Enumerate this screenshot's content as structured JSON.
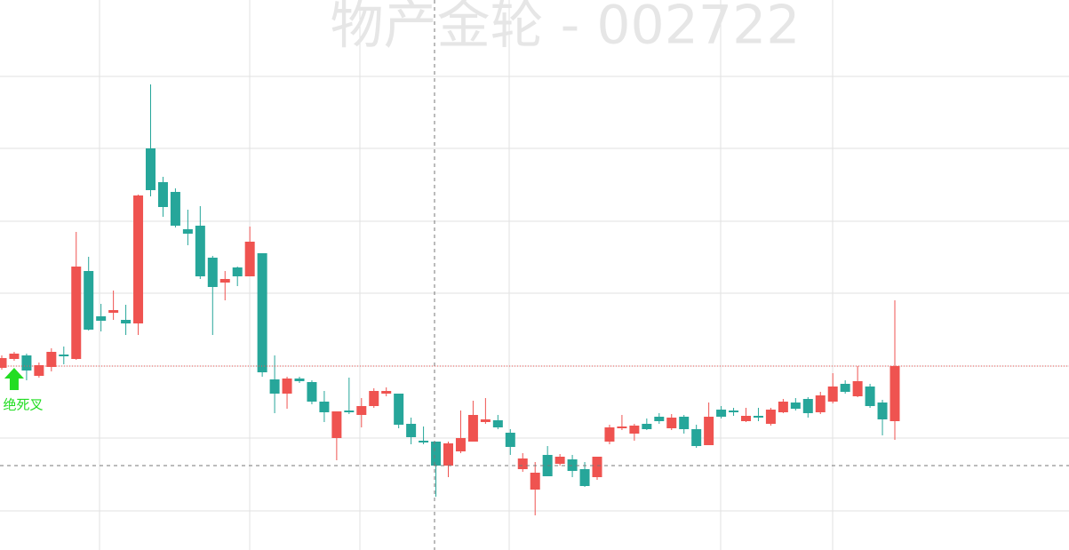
{
  "chart_data": {
    "type": "candlestick",
    "title": "物产金轮 - 002722",
    "annotation": "绝死叉",
    "annotation_index": 1,
    "up_color": "#ef5350",
    "down_color": "#26a69a",
    "annotation_color": "#22dd22",
    "ylim": [
      0,
      619
    ],
    "yticks": [
      44,
      126,
      207,
      289,
      370,
      452,
      533
    ],
    "grid": true,
    "open": [
      205,
      215,
      219,
      196,
      206,
      220,
      215,
      314,
      263,
      267,
      259,
      255,
      452,
      414,
      403,
      361,
      365,
      329,
      301,
      318,
      308,
      334,
      192,
      176,
      193,
      189,
      167,
      126,
      157,
      152,
      162,
      176,
      176,
      142,
      123,
      122,
      95,
      111,
      122,
      144,
      146,
      132,
      91,
      68,
      107,
      97,
      102,
      91,
      82,
      122,
      137,
      131,
      142,
      150,
      137,
      150,
      136,
      118,
      158,
      157,
      145,
      151,
      142,
      155,
      166,
      170,
      155,
      167,
      187,
      173,
      184,
      166,
      145
    ],
    "high": [
      219,
      223,
      221,
      211,
      227,
      229,
      358,
      330,
      277,
      292,
      276,
      400,
      524,
      420,
      407,
      383,
      387,
      331,
      314,
      319,
      364,
      334,
      219,
      195,
      195,
      191,
      179,
      156,
      194,
      171,
      182,
      183,
      176,
      149,
      139,
      122,
      122,
      157,
      168,
      171,
      152,
      136,
      109,
      99,
      117,
      108,
      107,
      99,
      105,
      141,
      152,
      142,
      148,
      154,
      153,
      152,
      141,
      166,
      162,
      160,
      160,
      160,
      160,
      170,
      171,
      172,
      178,
      199,
      191,
      207,
      187,
      169,
      281
    ],
    "low": [
      203,
      213,
      191,
      194,
      201,
      209,
      214,
      247,
      246,
      259,
      242,
      242,
      398,
      375,
      363,
      343,
      305,
      242,
      281,
      297,
      308,
      195,
      154,
      159,
      188,
      164,
      144,
      101,
      153,
      138,
      160,
      173,
      137,
      119,
      119,
      60,
      82,
      109,
      122,
      142,
      136,
      107,
      88,
      39,
      83,
      95,
      82,
      71,
      79,
      119,
      135,
      123,
      135,
      142,
      135,
      131,
      115,
      118,
      148,
      151,
      144,
      145,
      140,
      154,
      157,
      149,
      153,
      165,
      176,
      172,
      160,
      129,
      124
    ],
    "close": [
      216,
      221,
      202,
      208,
      223,
      218,
      319,
      248,
      258,
      270,
      255,
      399,
      405,
      386,
      365,
      356,
      308,
      296,
      305,
      308,
      347,
      200,
      176,
      193,
      190,
      167,
      155,
      156,
      155,
      162,
      179,
      179,
      141,
      127,
      121,
      95,
      120,
      126,
      152,
      147,
      138,
      116,
      103,
      87,
      83,
      105,
      89,
      72,
      105,
      138,
      139,
      140,
      136,
      145,
      149,
      136,
      117,
      150,
      150,
      155,
      151,
      149,
      158,
      167,
      159,
      154,
      174,
      184,
      178,
      190,
      162,
      147,
      207
    ]
  }
}
